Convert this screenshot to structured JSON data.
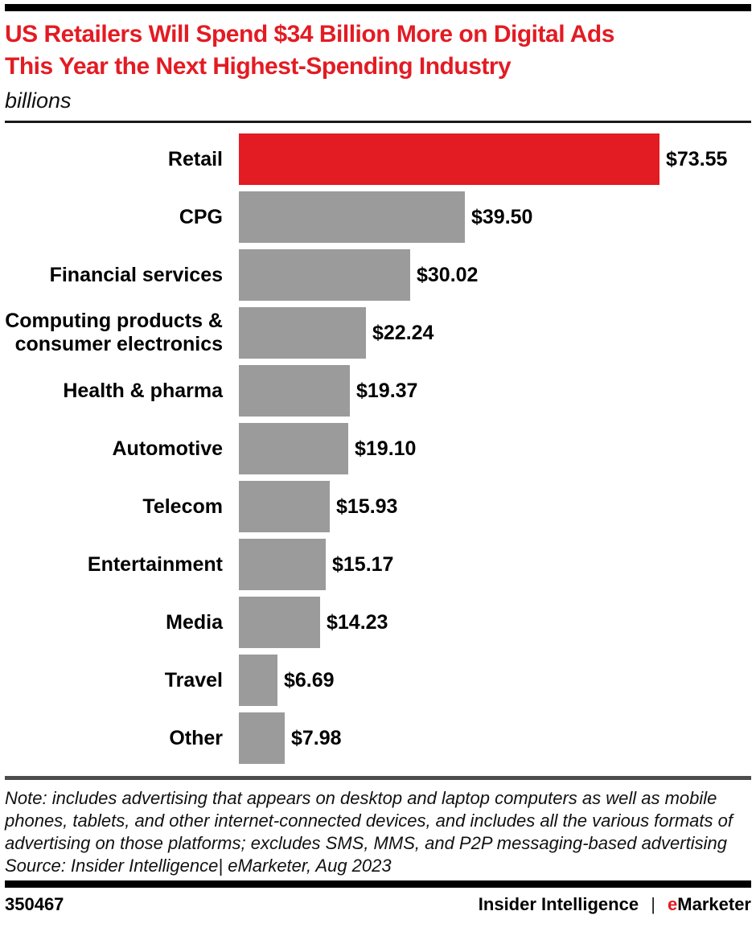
{
  "chart_data": {
    "type": "bar",
    "orientation": "horizontal",
    "title": "US Retailers Will Spend $34 Billion More on Digital Ads This Year the Next Highest-Spending Industry",
    "title_lines": [
      "US Retailers Will Spend $34 Billion More on Digital Ads",
      "This Year the Next Highest-Spending Industry"
    ],
    "units_label": "billions",
    "categories": [
      "Retail",
      "CPG",
      "Financial services",
      "Computing products &\nconsumer electronics",
      "Health & pharma",
      "Automotive",
      "Telecom",
      "Entertainment",
      "Media",
      "Travel",
      "Other"
    ],
    "values": [
      73.55,
      39.5,
      30.02,
      22.24,
      19.37,
      19.1,
      15.93,
      15.17,
      14.23,
      6.69,
      7.98
    ],
    "value_labels": [
      "$73.55",
      "$39.50",
      "$30.02",
      "$22.24",
      "$19.37",
      "$19.10",
      "$15.93",
      "$15.17",
      "$14.23",
      "$6.69",
      "$7.98"
    ],
    "xlim": [
      0,
      73.55
    ],
    "highlight_index": 0,
    "legend": "none",
    "grid": false
  },
  "note": {
    "text": "Note: includes advertising that appears on desktop and laptop computers as well as mobile phones, tablets, and other internet-connected devices, and includes all the various formats of advertising on those platforms; excludes SMS, MMS, and P2P messaging-based advertising",
    "source": "Source: Insider Intelligence| eMarketer, Aug 2023"
  },
  "footer": {
    "chart_id": "350467",
    "brand_left": "Insider Intelligence",
    "separator": "|",
    "brand_e": "e",
    "brand_rest": "Marketer"
  },
  "colors": {
    "accent_red": "#e31b23",
    "bar_gray": "#9b9b9b",
    "text_black": "#000000"
  }
}
